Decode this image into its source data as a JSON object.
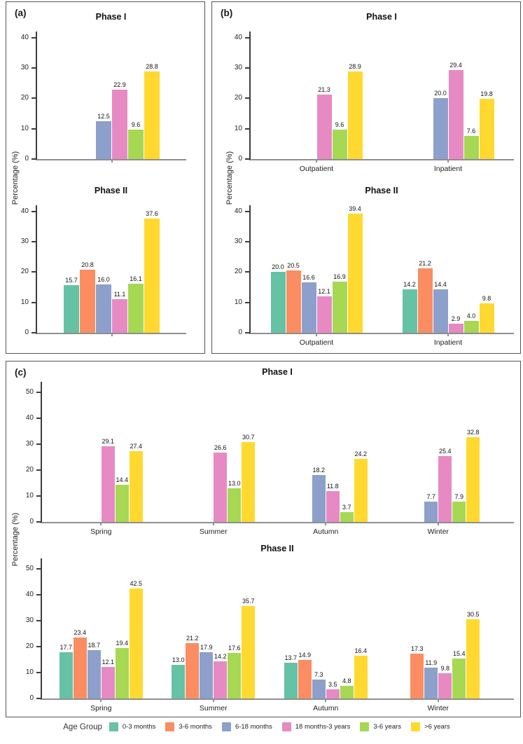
{
  "figure": {
    "panels": [
      {
        "label": "(a)",
        "ylabel": "Percentage (%)"
      },
      {
        "label": "(b)",
        "ylabel": "Percentage (%)"
      },
      {
        "label": "(c)",
        "ylabel": "Percentage (%)"
      }
    ]
  },
  "legend": {
    "title": "Age Group"
  },
  "age_groups": [
    {
      "label": "0-3 months",
      "color": "#66C2A5"
    },
    {
      "label": "3-6 months",
      "color": "#FC8D62"
    },
    {
      "label": "6-18 months",
      "color": "#8DA0CB"
    },
    {
      "label": "18 months-3 years",
      "color": "#E78AC3"
    },
    {
      "label": "3-6 years",
      "color": "#A6D854"
    },
    {
      "label": ">6 years",
      "color": "#FFD92F"
    }
  ],
  "chart_data": [
    {
      "panel": "a",
      "type": "bar",
      "title": "Phase I",
      "categories": [
        ""
      ],
      "ylim": [
        0,
        42
      ],
      "yticks": [
        0,
        10,
        20,
        30,
        40
      ],
      "ylabel": "Percentage (%)",
      "grid": false,
      "series": [
        {
          "name": "0-3 months",
          "values": [
            null
          ]
        },
        {
          "name": "3-6 months",
          "values": [
            null
          ]
        },
        {
          "name": "6-18 months",
          "values": [
            12.5
          ]
        },
        {
          "name": "18 months-3 years",
          "values": [
            22.9
          ]
        },
        {
          "name": "3-6 years",
          "values": [
            9.6
          ]
        },
        {
          "name": ">6 years",
          "values": [
            28.8
          ]
        }
      ]
    },
    {
      "panel": "a",
      "type": "bar",
      "title": "Phase II",
      "categories": [
        ""
      ],
      "ylim": [
        0,
        42
      ],
      "yticks": [
        0,
        10,
        20,
        30,
        40
      ],
      "ylabel": "Percentage (%)",
      "grid": false,
      "series": [
        {
          "name": "0-3 months",
          "values": [
            15.7
          ]
        },
        {
          "name": "3-6 months",
          "values": [
            20.8
          ]
        },
        {
          "name": "6-18 months",
          "values": [
            16.0
          ]
        },
        {
          "name": "18 months-3 years",
          "values": [
            11.1
          ]
        },
        {
          "name": "3-6 years",
          "values": [
            16.1
          ]
        },
        {
          "name": ">6 years",
          "values": [
            37.6
          ]
        }
      ]
    },
    {
      "panel": "b",
      "type": "bar",
      "title": "Phase I",
      "categories": [
        "Outpatient",
        "Inpatient"
      ],
      "ylim": [
        0,
        42
      ],
      "yticks": [
        0,
        10,
        20,
        30,
        40
      ],
      "ylabel": "Percentage (%)",
      "grid": false,
      "series": [
        {
          "name": "0-3 months",
          "values": [
            null,
            null
          ]
        },
        {
          "name": "3-6 months",
          "values": [
            null,
            null
          ]
        },
        {
          "name": "6-18 months",
          "values": [
            null,
            20.0
          ]
        },
        {
          "name": "18 months-3 years",
          "values": [
            21.3,
            29.4
          ]
        },
        {
          "name": "3-6 years",
          "values": [
            9.6,
            7.6
          ]
        },
        {
          "name": ">6 years",
          "values": [
            28.9,
            19.8
          ]
        }
      ]
    },
    {
      "panel": "b",
      "type": "bar",
      "title": "Phase II",
      "categories": [
        "Outpatient",
        "Inpatient"
      ],
      "ylim": [
        0,
        42
      ],
      "yticks": [
        0,
        10,
        20,
        30,
        40
      ],
      "ylabel": "Percentage (%)",
      "grid": false,
      "series": [
        {
          "name": "0-3 months",
          "values": [
            20.0,
            14.2
          ]
        },
        {
          "name": "3-6 months",
          "values": [
            20.5,
            21.2
          ]
        },
        {
          "name": "6-18 months",
          "values": [
            16.6,
            14.4
          ]
        },
        {
          "name": "18 months-3 years",
          "values": [
            12.1,
            2.9
          ]
        },
        {
          "name": "3-6 years",
          "values": [
            16.9,
            4.0
          ]
        },
        {
          "name": ">6 years",
          "values": [
            39.4,
            9.8
          ]
        }
      ]
    },
    {
      "panel": "c",
      "type": "bar",
      "title": "Phase I",
      "categories": [
        "Spring",
        "Summer",
        "Autumn",
        "Winter"
      ],
      "ylim": [
        0,
        54
      ],
      "yticks": [
        0,
        10,
        20,
        30,
        40,
        50
      ],
      "ylabel": "Percentage (%)",
      "grid": false,
      "series": [
        {
          "name": "0-3 months",
          "values": [
            null,
            null,
            null,
            null
          ]
        },
        {
          "name": "3-6 months",
          "values": [
            null,
            null,
            null,
            null
          ]
        },
        {
          "name": "6-18 months",
          "values": [
            null,
            null,
            18.2,
            7.7
          ]
        },
        {
          "name": "18 months-3 years",
          "values": [
            29.1,
            26.6,
            11.8,
            25.4
          ]
        },
        {
          "name": "3-6 years",
          "values": [
            14.4,
            13.0,
            3.7,
            7.9
          ]
        },
        {
          "name": ">6 years",
          "values": [
            27.4,
            30.7,
            24.2,
            32.8
          ]
        }
      ]
    },
    {
      "panel": "c",
      "type": "bar",
      "title": "Phase II",
      "categories": [
        "Spring",
        "Summer",
        "Autumn",
        "Winter"
      ],
      "ylim": [
        0,
        54
      ],
      "yticks": [
        0,
        10,
        20,
        30,
        40,
        50
      ],
      "ylabel": "Percentage (%)",
      "grid": false,
      "series": [
        {
          "name": "0-3 months",
          "values": [
            17.7,
            13.0,
            13.7,
            null
          ]
        },
        {
          "name": "3-6 months",
          "values": [
            23.4,
            21.2,
            14.9,
            17.3
          ]
        },
        {
          "name": "6-18 months",
          "values": [
            18.7,
            17.9,
            7.3,
            11.9
          ]
        },
        {
          "name": "18 months-3 years",
          "values": [
            12.1,
            14.2,
            3.5,
            9.8
          ]
        },
        {
          "name": "3-6 years",
          "values": [
            19.4,
            17.6,
            4.8,
            15.4
          ]
        },
        {
          "name": ">6 years",
          "values": [
            42.5,
            35.7,
            16.4,
            30.5
          ]
        }
      ]
    }
  ]
}
